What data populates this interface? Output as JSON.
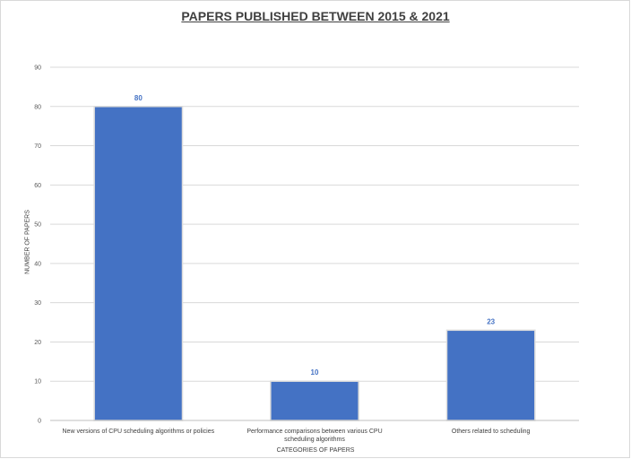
{
  "chart_data": {
    "type": "bar",
    "title": "PAPERS PUBLISHED BETWEEN 2015 & 2021",
    "xlabel": "CATEGORIES OF PAPERS",
    "ylabel": "NUMBER OF PAPERS",
    "categories": [
      [
        "New versions of CPU scheduling algorithms or policies"
      ],
      [
        "Performance comparisons between various CPU",
        "scheduling algorithms"
      ],
      [
        "Others related to scheduling"
      ]
    ],
    "values": [
      80,
      10,
      23
    ],
    "ylim": [
      0,
      90
    ],
    "yticks": [
      0,
      10,
      20,
      30,
      40,
      50,
      60,
      70,
      80,
      90
    ],
    "grid": true,
    "legend": "none",
    "bar_color": "#4472c4",
    "label_color": "#4472c4"
  }
}
